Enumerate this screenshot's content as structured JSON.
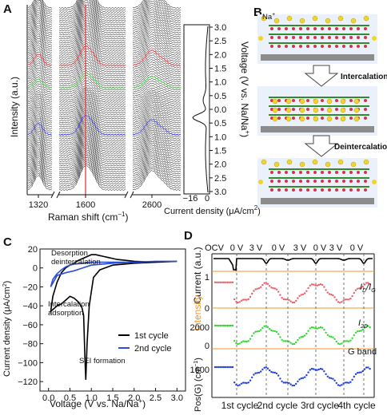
{
  "panels": {
    "A": {
      "letter": "A",
      "ylabel": "Intensity (a.u.)",
      "xlabel": "Raman shift (cm",
      "xlabel_sup": "−1",
      "xlabel_end": ")",
      "xticks": [
        "1320",
        "1600",
        "2600"
      ],
      "side_ylabel": "Voltage (V vs. Na/Na",
      "side_ylabel_sup": "+",
      "side_ylabel_end": ")",
      "side_ticks": [
        "3.0",
        "2.5",
        "2.0",
        "1.5",
        "1.0",
        "0.5",
        "0.0",
        "0.5",
        "1.0",
        "1.5",
        "2.0",
        "2.5",
        "3.0"
      ],
      "cd_ticks": [
        "−16",
        "0"
      ],
      "cd_label": "Current density (μA/cm",
      "cd_label_sup": "2",
      "cd_label_end": ")",
      "colors": {
        "traces": "#000000",
        "red": "#e8292f",
        "green": "#2fbf2f",
        "blue": "#3b3bdc",
        "cursor": "#e8292f"
      }
    },
    "B": {
      "letter": "B",
      "ion_label": "Na",
      "ion_sup": "+",
      "step1": "Intercalation",
      "step2": "Deintercalation",
      "colors": {
        "ion": "#f2d42a",
        "layer": "#2e8b2e",
        "dot": "#d6334a",
        "substrate": "#8c8c8c"
      }
    },
    "C": {
      "letter": "C",
      "ylabel": "Current density (μA/cm",
      "ylabel_sup": "2",
      "ylabel_end": ")",
      "xlabel": "Voltage (V vs. Na/Na",
      "xlabel_sup": "+",
      "xlabel_end": ")",
      "annotations": {
        "desorption1": "Desorption",
        "desorption2": "deintercalation",
        "intercalation1": "Intercalation",
        "intercalation2": "adsorption",
        "sei": "SEI formation"
      },
      "legend": [
        {
          "name": "1st cycle",
          "color": "#000000"
        },
        {
          "name": "2nd cycle",
          "color": "#2b4fd6"
        }
      ]
    },
    "D": {
      "letter": "D",
      "top_labels": [
        "OCV",
        "0 V",
        "3 V",
        "0 V",
        "3 V",
        "0 V",
        "3 V",
        "0 V"
      ],
      "ylabel_current": "Current (a.u.)",
      "ylabel_intensity": "Intensity",
      "ylabel_pos": "Pos(G) (cm",
      "ylabel_pos_sup": "−1",
      "ylabel_pos_end": ")",
      "tick_1": "1",
      "tick_0a": "0",
      "tick_2000": "2000",
      "tick_0b": "0",
      "tick_1600": "1600",
      "label_idig": "I",
      "label_idig_sub1": "D",
      "label_idig_mid": "/I",
      "label_idig_sub2": "G",
      "label_i2d": "I",
      "label_i2d_sub": "2D",
      "label_gband": "G band",
      "cycles": [
        "1st cycle",
        "2nd cycle",
        "3rd cycle",
        "4th cycle"
      ],
      "colors": {
        "current": "#000000",
        "idig": "#e8606a",
        "i2d": "#33d633",
        "gband": "#1f3fd6",
        "orange": "#f0962e"
      }
    }
  },
  "chart_data": [
    {
      "type": "line",
      "panel": "C",
      "xlabel": "Voltage (V vs. Na/Na+)",
      "ylabel": "Current density (μA/cm2)",
      "xlim": [
        -0.2,
        3.2
      ],
      "ylim": [
        -130,
        20
      ],
      "xticks": [
        0.0,
        0.5,
        1.0,
        1.5,
        2.0,
        2.5,
        3.0
      ],
      "yticks": [
        20,
        0,
        -20,
        -40,
        -60,
        -80,
        -100,
        -120
      ],
      "series": [
        {
          "name": "1st cycle",
          "x": [
            3.0,
            2.5,
            2.0,
            1.5,
            1.2,
            1.05,
            0.95,
            0.9,
            0.87,
            0.85,
            0.82,
            0.78,
            0.7,
            0.6,
            0.5,
            0.4,
            0.3,
            0.2,
            0.1,
            0.05,
            0.1,
            0.2,
            0.3,
            0.4,
            0.5,
            0.6,
            0.7,
            0.8,
            0.9,
            1.0,
            1.1,
            1.2,
            1.3,
            1.4,
            1.5,
            1.6,
            1.8,
            2.0,
            2.5,
            3.0
          ],
          "y": [
            7,
            6,
            5,
            3,
            -2,
            -10,
            -40,
            -80,
            -118,
            -95,
            -50,
            -42,
            -36,
            -32,
            -30,
            -34,
            -38,
            -40,
            -44,
            -46,
            -30,
            -15,
            -5,
            0,
            3,
            5,
            8,
            10,
            12,
            14,
            14,
            13,
            12,
            11,
            10,
            9,
            8,
            7,
            6,
            7
          ]
        },
        {
          "name": "2nd cycle",
          "x": [
            3.0,
            2.5,
            2.0,
            1.5,
            1.0,
            0.8,
            0.6,
            0.4,
            0.2,
            0.05,
            0.1,
            0.2,
            0.3,
            0.4,
            0.5,
            0.6,
            0.8,
            1.0,
            1.2,
            1.4,
            1.6,
            2.0,
            2.5,
            3.0
          ],
          "y": [
            7,
            7,
            6,
            5,
            3,
            0,
            -3,
            -5,
            -8,
            -20,
            -12,
            -6,
            -2,
            1,
            3,
            4,
            5,
            6,
            6,
            6,
            6,
            6,
            7,
            7
          ]
        }
      ]
    }
  ]
}
